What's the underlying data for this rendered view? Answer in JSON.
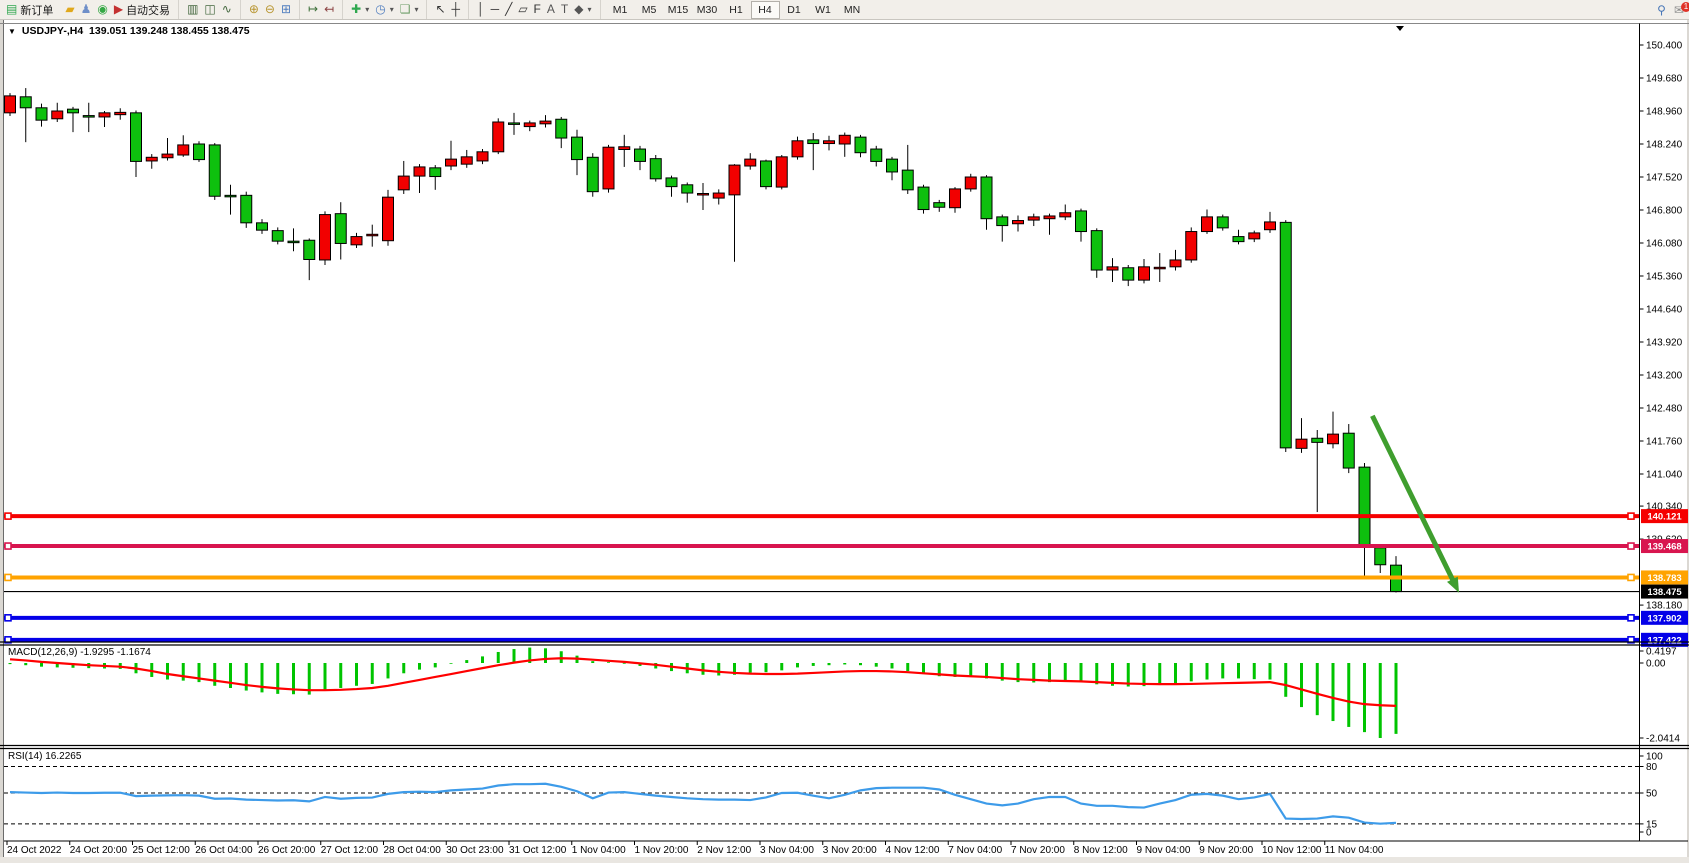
{
  "toolbar": {
    "timeframes": [
      "M1",
      "M5",
      "M15",
      "M30",
      "H1",
      "H4",
      "D1",
      "W1",
      "MN"
    ],
    "active_timeframe": "H4",
    "right_icons": [
      {
        "name": "search-icon",
        "glyph": "⚲",
        "color": "#4a78b8"
      },
      {
        "name": "notifications-icon",
        "glyph": "✉",
        "color": "#8d8d8d",
        "badge": "1"
      }
    ],
    "groups": [
      {
        "items": [
          {
            "name": "new-order-button",
            "glyph": "▤",
            "color": "#2fa84f",
            "label": "新订单"
          }
        ]
      },
      {
        "items": [
          {
            "name": "market-icon",
            "glyph": "▰",
            "color": "#e0a81c"
          },
          {
            "name": "profile-icon",
            "glyph": "♟",
            "color": "#6e8ec8"
          },
          {
            "name": "signals-icon",
            "glyph": "◉",
            "color": "#35a845"
          },
          {
            "name": "autotrading-button",
            "glyph": "▶",
            "color": "#c43131",
            "label": "自动交易"
          }
        ]
      },
      {
        "sep": true,
        "items": [
          {
            "name": "bar-chart-icon",
            "glyph": "▥",
            "color": "#44683f"
          },
          {
            "name": "candlestick-chart-icon",
            "glyph": "◫",
            "color": "#44683f"
          },
          {
            "name": "line-chart-icon",
            "glyph": "∿",
            "color": "#44683f"
          }
        ]
      },
      {
        "sep": true,
        "items": [
          {
            "name": "zoom-in-icon",
            "glyph": "⊕",
            "color": "#b8952f"
          },
          {
            "name": "zoom-out-icon",
            "glyph": "⊖",
            "color": "#b8952f"
          },
          {
            "name": "tile-windows-icon",
            "glyph": "⊞",
            "color": "#4f7dbf"
          }
        ]
      },
      {
        "sep": true,
        "items": [
          {
            "name": "auto-scroll-icon",
            "glyph": "↦",
            "color": "#3b6e37"
          },
          {
            "name": "chart-shift-icon",
            "glyph": "↤",
            "color": "#8a4040"
          }
        ]
      },
      {
        "sep": true,
        "items": [
          {
            "name": "indicators-icon",
            "glyph": "✚",
            "color": "#2fa84f",
            "dropdown": true
          },
          {
            "name": "periods-icon",
            "glyph": "◷",
            "color": "#4f7dbf",
            "dropdown": true
          },
          {
            "name": "templates-icon",
            "glyph": "❏",
            "color": "#6f9f6a",
            "dropdown": true
          }
        ]
      },
      {
        "sep": true,
        "items": [
          {
            "name": "cursor-icon",
            "glyph": "↖",
            "color": "#333333"
          },
          {
            "name": "crosshair-icon",
            "glyph": "┼",
            "color": "#333333"
          }
        ]
      },
      {
        "sep": true,
        "items": [
          {
            "name": "vertical-line-icon",
            "glyph": "│",
            "color": "#333333"
          },
          {
            "name": "horizontal-line-icon",
            "glyph": "─",
            "color": "#333333"
          },
          {
            "name": "trendline-icon",
            "glyph": "╱",
            "color": "#333333"
          },
          {
            "name": "equidistant-channel-icon",
            "glyph": "▱",
            "color": "#333333"
          },
          {
            "name": "fibonacci-icon",
            "glyph": "F",
            "color": "#333333"
          },
          {
            "name": "text-icon",
            "glyph": "A",
            "color": "#555555"
          },
          {
            "name": "text-label-icon",
            "glyph": "T",
            "color": "#555555"
          },
          {
            "name": "arrows-icon",
            "glyph": "◆",
            "color": "#555555",
            "dropdown": true
          }
        ]
      }
    ]
  },
  "chart": {
    "collapse_glyph": "▼",
    "title_symbol": "USDJPY-,H4",
    "title_ohlc": "139.051 139.248 138.455 138.475"
  },
  "chart_data": {
    "type": "candlestick",
    "symbol": "USDJPY-",
    "timeframe": "H4",
    "bull_color": "#f20000",
    "bear_color": "#0ec00e",
    "outline_color": "#000000",
    "y_axis_labels": [
      "150.400",
      "149.680",
      "148.960",
      "148.240",
      "147.520",
      "146.800",
      "146.080",
      "145.360",
      "144.640",
      "143.920",
      "143.200",
      "142.480",
      "141.760",
      "141.040",
      "140.340",
      "139.620",
      "138.180"
    ],
    "x_labels": [
      "24 Oct 2022",
      "24 Oct 20:00",
      "25 Oct 12:00",
      "26 Oct 04:00",
      "26 Oct 20:00",
      "27 Oct 12:00",
      "28 Oct 04:00",
      "30 Oct 23:00",
      "31 Oct 12:00",
      "1 Nov 04:00",
      "1 Nov 20:00",
      "2 Nov 12:00",
      "3 Nov 04:00",
      "3 Nov 20:00",
      "4 Nov 12:00",
      "7 Nov 04:00",
      "7 Nov 20:00",
      "8 Nov 12:00",
      "9 Nov 04:00",
      "9 Nov 20:00",
      "10 Nov 12:00",
      "11 Nov 04:00"
    ],
    "candles": [
      [
        148.92,
        149.35,
        148.85,
        149.29
      ],
      [
        149.27,
        149.46,
        148.28,
        149.03
      ],
      [
        149.03,
        149.12,
        148.62,
        148.76
      ],
      [
        148.79,
        149.14,
        148.72,
        148.96
      ],
      [
        149.0,
        149.05,
        148.5,
        148.92
      ],
      [
        148.86,
        149.14,
        148.5,
        148.84
      ],
      [
        148.83,
        148.96,
        148.61,
        148.92
      ],
      [
        148.88,
        149.02,
        148.77,
        148.93
      ],
      [
        148.92,
        148.97,
        147.52,
        147.86
      ],
      [
        147.87,
        148.02,
        147.7,
        147.95
      ],
      [
        147.94,
        148.37,
        147.88,
        148.02
      ],
      [
        148.0,
        148.43,
        147.96,
        148.22
      ],
      [
        148.24,
        148.3,
        147.85,
        147.9
      ],
      [
        148.22,
        148.26,
        147.02,
        147.1
      ],
      [
        147.12,
        147.35,
        146.7,
        147.1
      ],
      [
        147.12,
        147.2,
        146.41,
        146.52
      ],
      [
        146.52,
        146.6,
        146.28,
        146.36
      ],
      [
        146.35,
        146.42,
        146.05,
        146.12
      ],
      [
        146.12,
        146.4,
        145.9,
        146.1
      ],
      [
        146.14,
        146.18,
        145.27,
        145.72
      ],
      [
        145.71,
        146.77,
        145.6,
        146.7
      ],
      [
        146.72,
        146.97,
        145.72,
        146.07
      ],
      [
        146.04,
        146.3,
        145.97,
        146.22
      ],
      [
        146.25,
        146.48,
        146.0,
        146.27
      ],
      [
        146.13,
        147.24,
        146.02,
        147.08
      ],
      [
        147.24,
        147.87,
        147.15,
        147.54
      ],
      [
        147.54,
        147.8,
        147.17,
        147.74
      ],
      [
        147.72,
        147.78,
        147.24,
        147.53
      ],
      [
        147.76,
        148.31,
        147.67,
        147.91
      ],
      [
        147.8,
        148.11,
        147.72,
        147.96
      ],
      [
        147.87,
        148.13,
        147.8,
        148.07
      ],
      [
        148.07,
        148.8,
        148.02,
        148.72
      ],
      [
        148.7,
        148.92,
        148.44,
        148.67
      ],
      [
        148.62,
        148.75,
        148.52,
        148.7
      ],
      [
        148.68,
        148.87,
        148.6,
        148.74
      ],
      [
        148.78,
        148.83,
        148.15,
        148.37
      ],
      [
        148.39,
        148.55,
        147.56,
        147.9
      ],
      [
        147.95,
        148.04,
        147.09,
        147.2
      ],
      [
        147.26,
        148.22,
        147.18,
        148.17
      ],
      [
        148.12,
        148.44,
        147.74,
        148.18
      ],
      [
        148.13,
        148.2,
        147.67,
        147.86
      ],
      [
        147.92,
        148.0,
        147.42,
        147.48
      ],
      [
        147.5,
        147.55,
        147.09,
        147.31
      ],
      [
        147.35,
        147.4,
        146.96,
        147.17
      ],
      [
        147.14,
        147.39,
        146.8,
        147.16
      ],
      [
        147.06,
        147.25,
        146.92,
        147.17
      ],
      [
        147.13,
        147.8,
        145.67,
        147.78
      ],
      [
        147.76,
        148.04,
        147.68,
        147.91
      ],
      [
        147.87,
        147.9,
        147.25,
        147.31
      ],
      [
        147.3,
        148.0,
        147.25,
        147.96
      ],
      [
        147.96,
        148.4,
        147.9,
        148.31
      ],
      [
        148.33,
        148.48,
        147.67,
        148.25
      ],
      [
        148.25,
        148.42,
        148.1,
        148.31
      ],
      [
        148.24,
        148.49,
        147.96,
        148.43
      ],
      [
        148.39,
        148.44,
        147.95,
        148.05
      ],
      [
        148.13,
        148.2,
        147.75,
        147.86
      ],
      [
        147.91,
        147.96,
        147.45,
        147.63
      ],
      [
        147.67,
        148.22,
        147.15,
        147.24
      ],
      [
        147.3,
        147.35,
        146.72,
        146.81
      ],
      [
        146.96,
        147.02,
        146.76,
        146.86
      ],
      [
        146.85,
        147.3,
        146.74,
        147.26
      ],
      [
        147.26,
        147.59,
        147.2,
        147.52
      ],
      [
        147.52,
        147.56,
        146.37,
        146.61
      ],
      [
        146.65,
        146.7,
        146.11,
        146.46
      ],
      [
        146.5,
        146.68,
        146.33,
        146.57
      ],
      [
        146.58,
        146.72,
        146.45,
        146.65
      ],
      [
        146.61,
        146.72,
        146.26,
        146.67
      ],
      [
        146.65,
        146.92,
        146.58,
        146.74
      ],
      [
        146.78,
        146.83,
        146.11,
        146.33
      ],
      [
        146.35,
        146.4,
        145.32,
        145.49
      ],
      [
        145.49,
        145.75,
        145.23,
        145.56
      ],
      [
        145.54,
        145.6,
        145.14,
        145.27
      ],
      [
        145.27,
        145.73,
        145.2,
        145.56
      ],
      [
        145.53,
        145.86,
        145.23,
        145.55
      ],
      [
        145.56,
        145.93,
        145.48,
        145.71
      ],
      [
        145.71,
        146.42,
        145.65,
        146.33
      ],
      [
        146.33,
        146.81,
        146.28,
        146.65
      ],
      [
        146.65,
        146.7,
        146.35,
        146.41
      ],
      [
        146.22,
        146.37,
        146.05,
        146.11
      ],
      [
        146.17,
        146.35,
        146.1,
        146.3
      ],
      [
        146.37,
        146.76,
        146.3,
        146.54
      ],
      [
        146.53,
        146.58,
        141.52,
        141.61
      ],
      [
        141.6,
        142.26,
        141.5,
        141.8
      ],
      [
        141.82,
        142.0,
        140.21,
        141.73
      ],
      [
        141.7,
        142.4,
        141.6,
        141.91
      ],
      [
        141.93,
        142.13,
        141.06,
        141.17
      ],
      [
        141.19,
        141.28,
        138.79,
        139.49
      ],
      [
        139.43,
        139.49,
        138.88,
        139.06
      ],
      [
        139.051,
        139.248,
        138.455,
        138.475
      ]
    ],
    "hlines": [
      {
        "name": "level-line-red",
        "price": "140.121",
        "value": 140.121,
        "color": "#f50000",
        "width": 4
      },
      {
        "name": "level-line-crimson",
        "price": "139.468",
        "value": 139.468,
        "color": "#d8154f",
        "width": 4
      },
      {
        "name": "level-line-orange",
        "price": "138.783",
        "value": 138.783,
        "color": "#ffa300",
        "width": 4
      },
      {
        "name": "level-line-blue-1",
        "price": "137.902",
        "value": 137.902,
        "color": "#0400e8",
        "width": 4
      },
      {
        "name": "level-line-blue-2",
        "price": "137.422",
        "value": 137.422,
        "color": "#0400e8",
        "width": 4
      }
    ],
    "current_price": {
      "label": "138.475",
      "value": 138.475,
      "color": "#000000"
    },
    "arrow": {
      "from_bar": 86.5,
      "from_price": 142.31,
      "to_bar": 92,
      "to_price": 138.45,
      "color": "#3f9e2e"
    },
    "macd": {
      "label": "MACD(12,26,9) -1.9295 -1.1674",
      "histogram_color": "#00c400",
      "signal_color": "#ff0000",
      "scale_labels": [
        "0.4197",
        "0.00",
        "-2.0414"
      ],
      "histogram": [
        -0.03,
        -0.06,
        -0.1,
        -0.12,
        -0.13,
        -0.14,
        -0.15,
        -0.16,
        -0.28,
        -0.38,
        -0.45,
        -0.48,
        -0.52,
        -0.62,
        -0.68,
        -0.75,
        -0.8,
        -0.84,
        -0.85,
        -0.86,
        -0.74,
        -0.68,
        -0.62,
        -0.57,
        -0.42,
        -0.28,
        -0.18,
        -0.12,
        -0.02,
        0.08,
        0.18,
        0.3,
        0.38,
        0.42,
        0.4,
        0.32,
        0.2,
        0.05,
        0.02,
        -0.02,
        -0.08,
        -0.15,
        -0.22,
        -0.28,
        -0.32,
        -0.34,
        -0.32,
        -0.26,
        -0.25,
        -0.2,
        -0.12,
        -0.08,
        -0.06,
        -0.04,
        -0.06,
        -0.1,
        -0.15,
        -0.22,
        -0.3,
        -0.36,
        -0.38,
        -0.36,
        -0.42,
        -0.48,
        -0.52,
        -0.53,
        -0.52,
        -0.5,
        -0.52,
        -0.58,
        -0.62,
        -0.64,
        -0.63,
        -0.6,
        -0.56,
        -0.5,
        -0.45,
        -0.42,
        -0.42,
        -0.44,
        -0.45,
        -0.92,
        -1.2,
        -1.42,
        -1.58,
        -1.74,
        -1.88,
        -2.0414,
        -1.9295
      ],
      "signal": [
        0.1,
        0.07,
        0.03,
        0.0,
        -0.03,
        -0.06,
        -0.08,
        -0.1,
        -0.15,
        -0.22,
        -0.3,
        -0.36,
        -0.42,
        -0.48,
        -0.54,
        -0.6,
        -0.65,
        -0.69,
        -0.72,
        -0.74,
        -0.74,
        -0.73,
        -0.71,
        -0.68,
        -0.62,
        -0.54,
        -0.46,
        -0.38,
        -0.3,
        -0.22,
        -0.14,
        -0.06,
        0.01,
        0.07,
        0.11,
        0.13,
        0.12,
        0.09,
        0.06,
        0.03,
        -0.01,
        -0.05,
        -0.1,
        -0.15,
        -0.2,
        -0.24,
        -0.27,
        -0.29,
        -0.3,
        -0.3,
        -0.29,
        -0.27,
        -0.25,
        -0.23,
        -0.22,
        -0.22,
        -0.23,
        -0.25,
        -0.28,
        -0.31,
        -0.34,
        -0.36,
        -0.38,
        -0.41,
        -0.44,
        -0.46,
        -0.48,
        -0.49,
        -0.5,
        -0.52,
        -0.54,
        -0.56,
        -0.57,
        -0.575,
        -0.575,
        -0.57,
        -0.56,
        -0.55,
        -0.54,
        -0.53,
        -0.52,
        -0.6,
        -0.72,
        -0.84,
        -0.95,
        -1.05,
        -1.12,
        -1.15,
        -1.1674
      ]
    },
    "rsi": {
      "label": "RSI(14) 16.2265",
      "color": "#3d9be9",
      "levels": [
        80,
        50,
        15
      ],
      "scale_labels": [
        "100",
        "80",
        "50",
        "15",
        "0"
      ],
      "values": [
        51,
        50.5,
        50,
        50.5,
        50,
        50,
        50.3,
        50.3,
        46.5,
        47,
        47.3,
        47.5,
        47,
        43.5,
        43.8,
        42.5,
        42,
        41.5,
        41.8,
        40.5,
        45.5,
        43.5,
        44.5,
        44.8,
        49,
        51,
        51.5,
        51,
        53,
        54,
        55,
        58.5,
        60,
        60,
        60.5,
        57,
        52,
        44,
        50.5,
        51,
        49,
        47,
        45.5,
        44,
        43,
        42.5,
        42.5,
        42,
        45,
        50,
        50.3,
        47,
        44,
        48,
        53,
        55.5,
        56,
        56,
        56,
        54,
        48,
        43,
        38,
        36,
        38,
        43,
        45.5,
        45.5,
        38,
        35.5,
        35.5,
        34,
        33.5,
        38,
        42,
        48,
        49,
        47,
        43,
        45,
        49,
        21,
        20.5,
        21,
        23.5,
        22,
        16.5,
        15.2,
        16.2265
      ]
    }
  }
}
